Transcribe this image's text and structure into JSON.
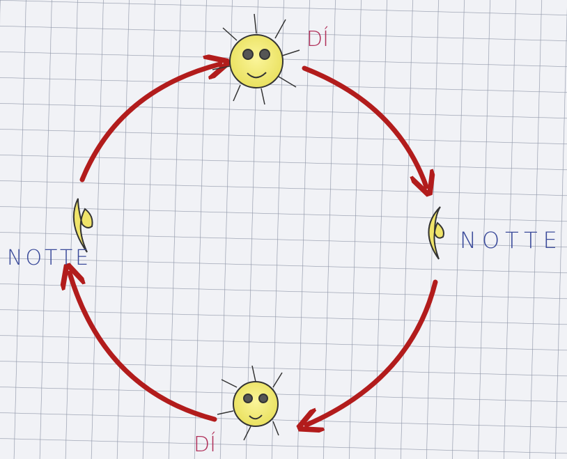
{
  "nodes": [
    {
      "label": "DÍ"
    },
    {
      "label": "NOTTE"
    },
    {
      "label": "DÍ"
    },
    {
      "label": "NOTTE"
    }
  ]
}
